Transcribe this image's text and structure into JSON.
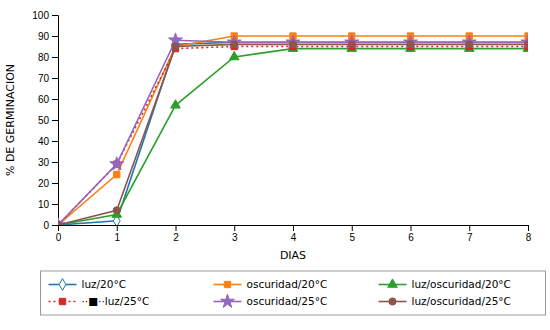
{
  "chart_data": {
    "type": "line",
    "x": [
      0,
      1,
      2,
      3,
      4,
      5,
      6,
      7,
      8
    ],
    "series": [
      {
        "name": "luz/20°C",
        "values": [
          0,
          2,
          86,
          87,
          87,
          87,
          87,
          87,
          87
        ],
        "marker": "diamond-open",
        "line_style": "solid"
      },
      {
        "name": "oscuridad/20°C",
        "values": [
          0,
          24,
          85,
          90,
          90,
          90,
          90,
          90,
          90
        ],
        "marker": "square",
        "line_style": "solid"
      },
      {
        "name": "luz/oscuridad/20°C",
        "values": [
          0,
          5,
          57,
          80,
          84,
          84,
          84,
          84,
          84
        ],
        "marker": "triangle",
        "line_style": "solid"
      },
      {
        "name": "··■··luz/25°C",
        "values": [
          0,
          29,
          84,
          85,
          85,
          85,
          85,
          85,
          85
        ],
        "marker": "square",
        "line_style": "dotted"
      },
      {
        "name": "oscuridad/25°C",
        "values": [
          0,
          29,
          88,
          87,
          87,
          87,
          87,
          87,
          87
        ],
        "marker": "star",
        "line_style": "solid"
      },
      {
        "name": "luz/oscuridad/25°C",
        "values": [
          0,
          7,
          85,
          86,
          86,
          86,
          86,
          86,
          86
        ],
        "marker": "circle",
        "line_style": "solid"
      }
    ],
    "xlabel": "DIAS",
    "ylabel": "% DE GERMINACION",
    "xlim": [
      0,
      8
    ],
    "ylim": [
      0,
      100
    ],
    "xticks": [
      0,
      1,
      2,
      3,
      4,
      5,
      6,
      7,
      8
    ],
    "yticks": [
      0,
      10,
      20,
      30,
      40,
      50,
      60,
      70,
      80,
      90,
      100
    ],
    "grid": false,
    "legend": "bottom"
  }
}
